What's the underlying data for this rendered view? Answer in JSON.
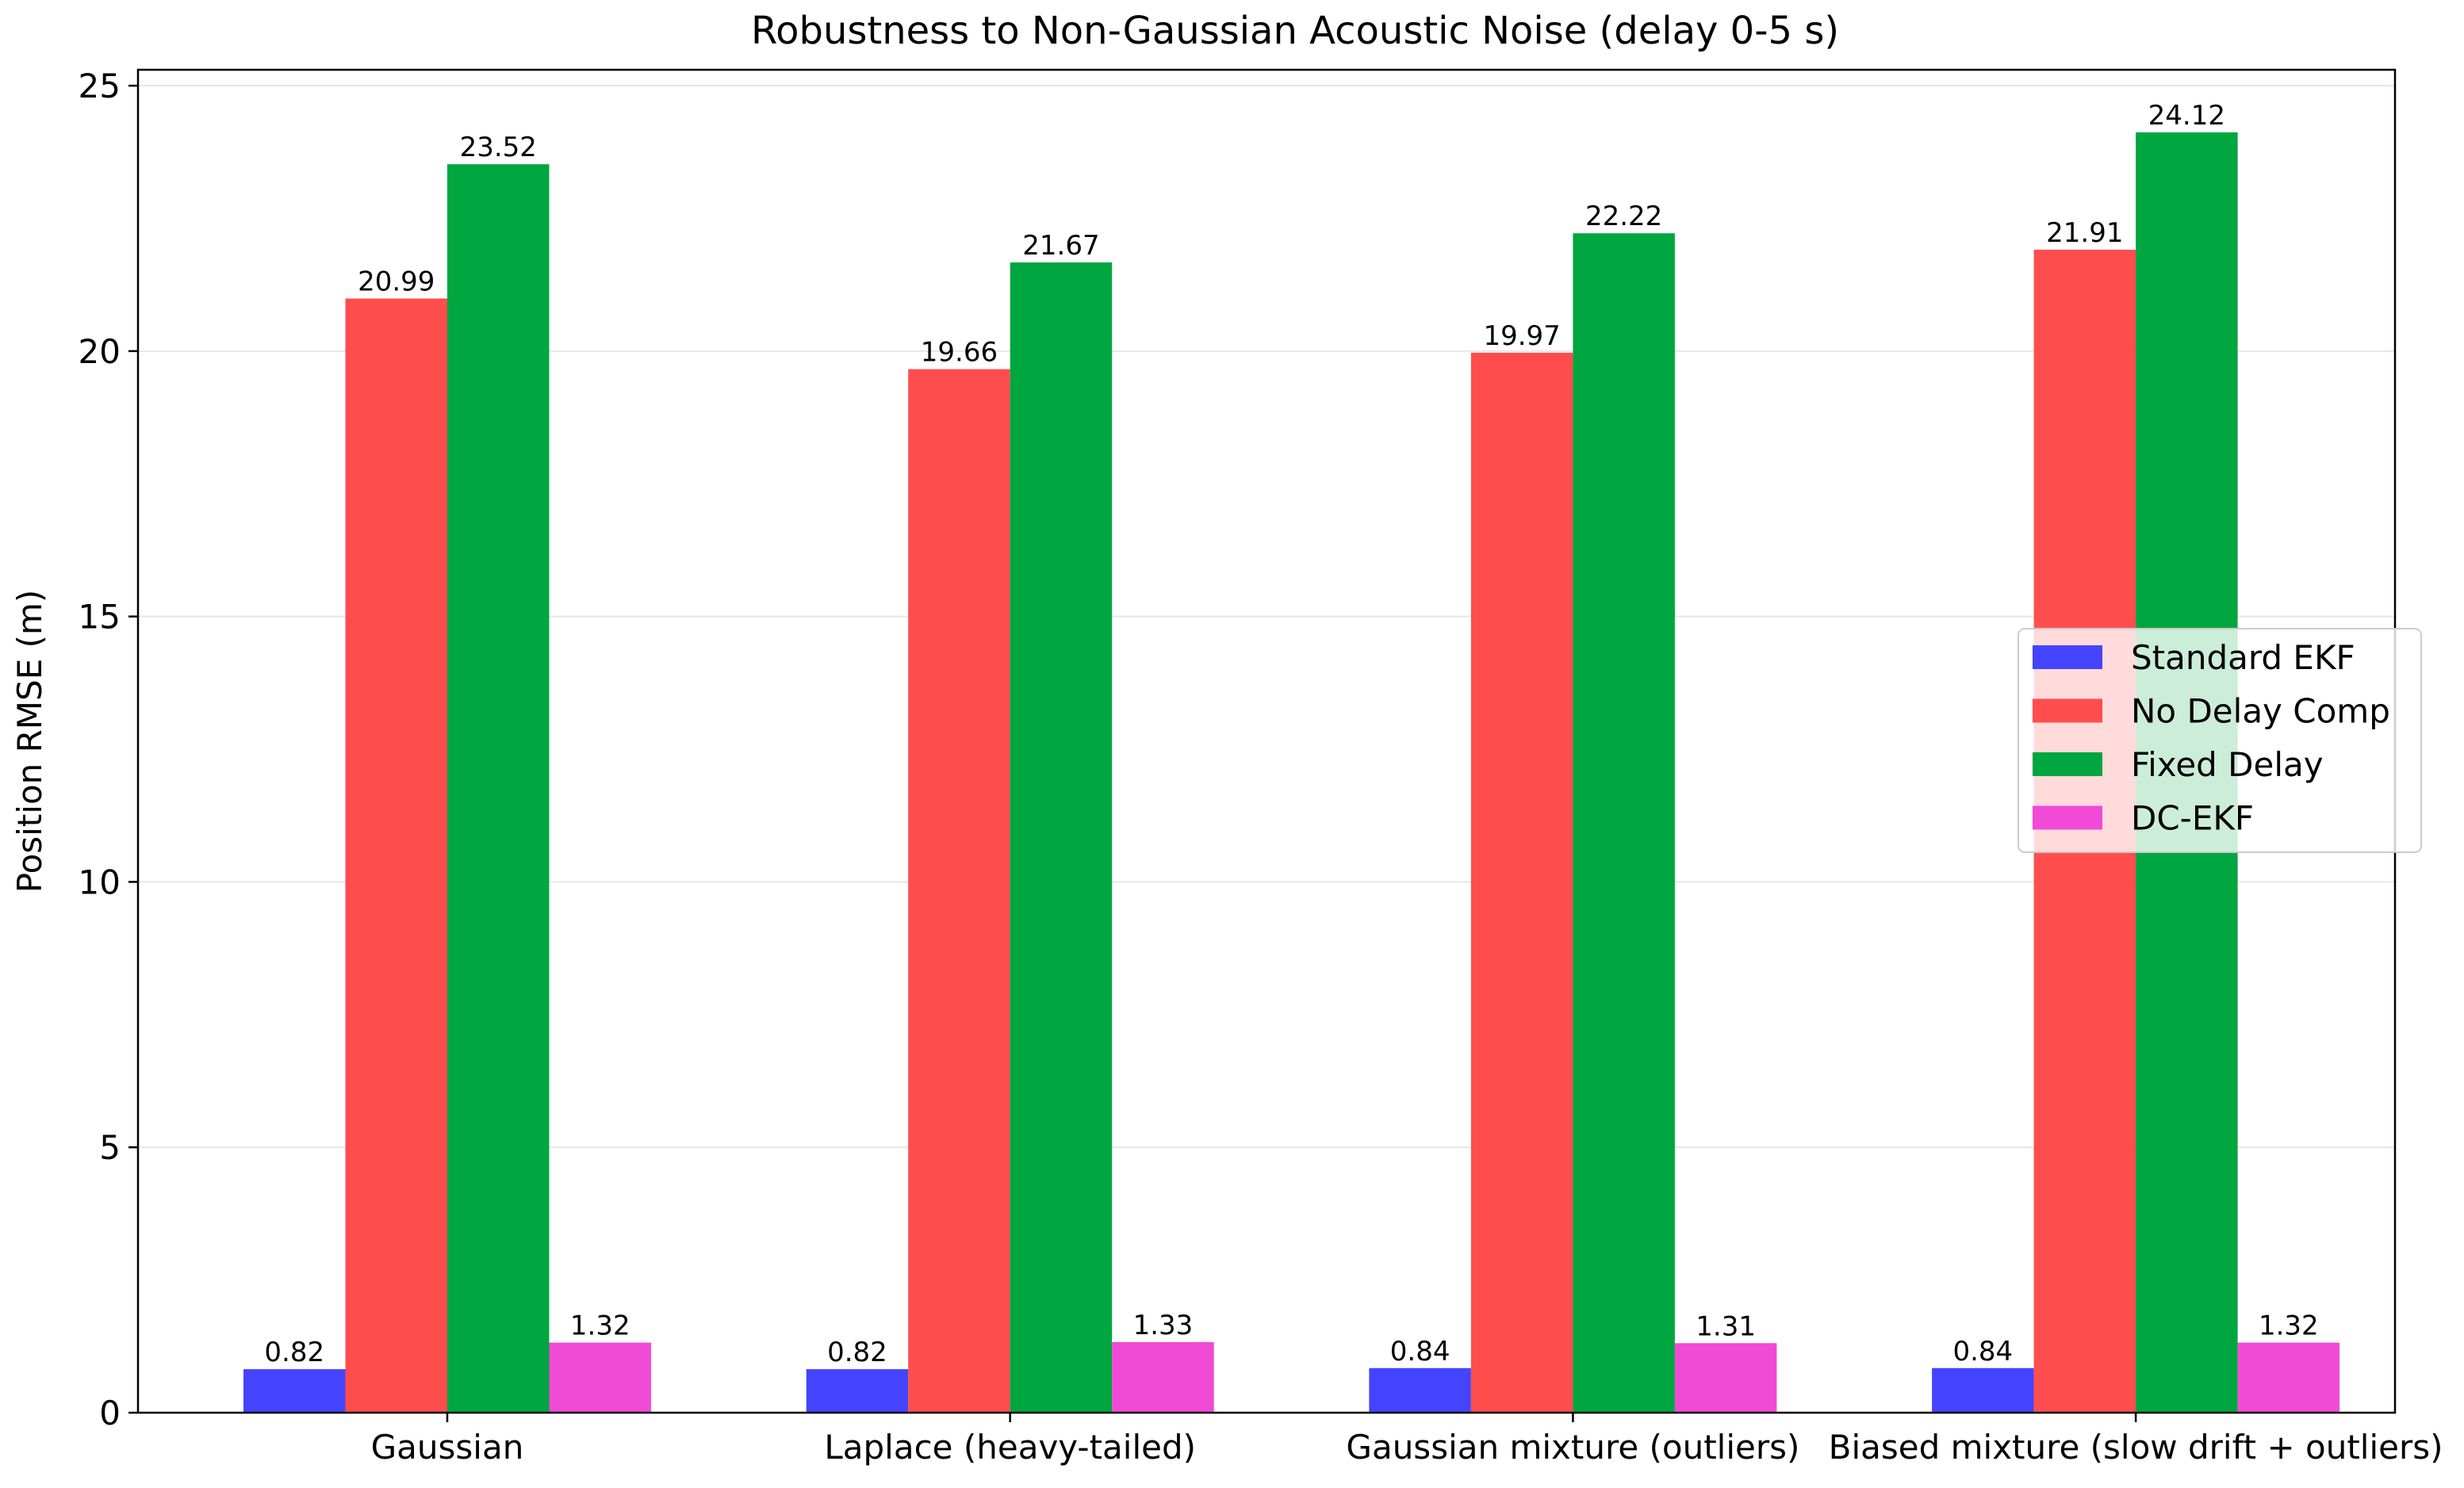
{
  "chart_data": {
    "type": "bar",
    "title": "Robustness to Non-Gaussian Acoustic Noise (delay 0-5 s)",
    "xlabel": "",
    "ylabel": "Position RMSE (m)",
    "ylim": [
      0,
      25.3
    ],
    "yticks": [
      0,
      5,
      10,
      15,
      20,
      25
    ],
    "grid": "y",
    "legend_position": "center-right",
    "categories": [
      "Gaussian",
      "Laplace (heavy-tailed)",
      "Gaussian mixture (outliers)",
      "Biased mixture (slow drift + outliers)"
    ],
    "series": [
      {
        "name": "Standard EKF",
        "color": "#4444ff",
        "values": [
          0.82,
          0.82,
          0.84,
          0.84
        ]
      },
      {
        "name": "No Delay Comp",
        "color": "#ff4d4d",
        "values": [
          20.99,
          19.66,
          19.97,
          21.91
        ]
      },
      {
        "name": "Fixed Delay",
        "color": "#00a640",
        "values": [
          23.52,
          21.67,
          22.22,
          24.12
        ]
      },
      {
        "name": "DC-EKF",
        "color": "#f04ad6",
        "values": [
          1.32,
          1.33,
          1.31,
          1.32
        ]
      }
    ]
  }
}
